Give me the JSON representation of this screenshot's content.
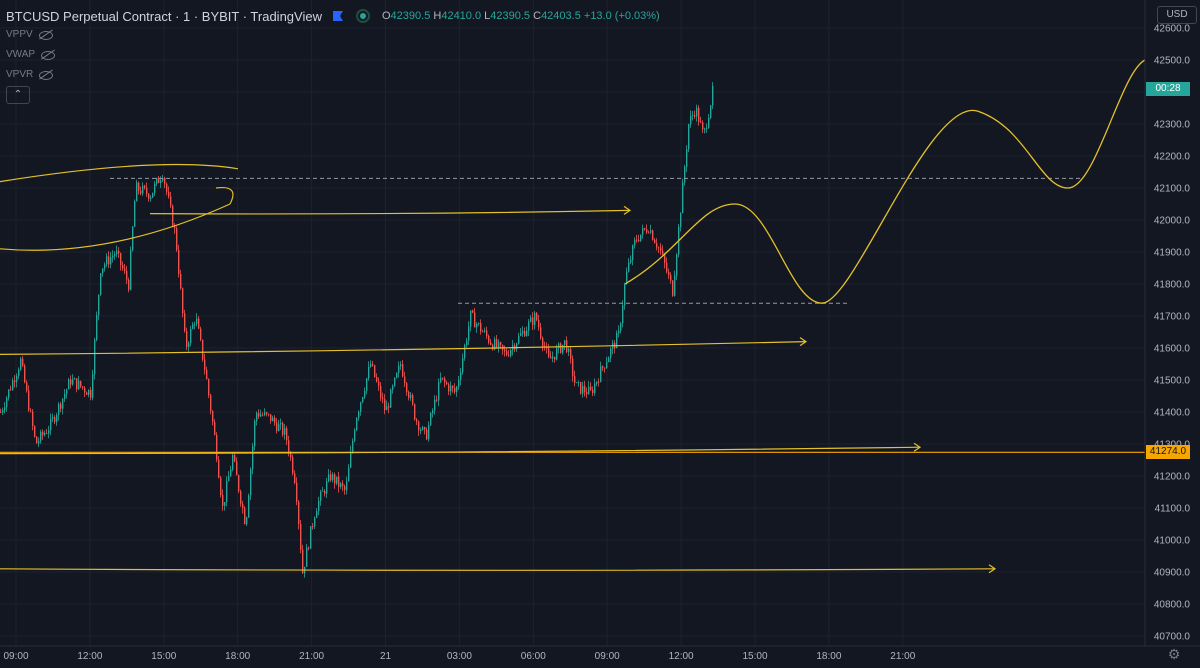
{
  "header": {
    "symbol": "BTCUSD Perpetual Contract · 1 · BYBIT · TradingView",
    "open_key": "O",
    "open": "42390.5",
    "high_key": "H",
    "high": "42410.0",
    "low_key": "L",
    "low": "42390.5",
    "close_key": "C",
    "close": "42403.5",
    "change": "+13.0 (+0.03%)"
  },
  "indicators": [
    {
      "label": "VPPV",
      "icon": "eye-off-icon"
    },
    {
      "label": "VWAP",
      "icon": "eye-off-icon"
    },
    {
      "label": "VPVR",
      "icon": "eye-off-icon"
    }
  ],
  "collapse_symbol": "⌃",
  "currency": "USD",
  "timer_label": "00:28",
  "level_label": "41274.0",
  "settings_icon": "gear-icon",
  "settings_glyph": "⚙",
  "colors": {
    "background": "#131722",
    "up": "#26a69a",
    "down": "#ef5350",
    "drawing": "#e3c02b",
    "level": "#f7a600",
    "grid": "#1e222d",
    "text": "#d1d4dc"
  },
  "chart_data": {
    "type": "candlestick",
    "yaxis_ticks": [
      "42600.0",
      "42500.0",
      "42400.0",
      "42300.0",
      "42200.0",
      "42100.0",
      "42000.0",
      "41900.0",
      "41800.0",
      "41700.0",
      "41600.0",
      "41500.0",
      "41400.0",
      "41300.0",
      "41200.0",
      "41100.0",
      "41000.0",
      "40900.0",
      "40800.0",
      "40700.0"
    ],
    "xaxis_ticks": [
      "09:00",
      "12:00",
      "15:00",
      "18:00",
      "21:00",
      "21",
      "03:00",
      "06:00",
      "09:00",
      "12:00",
      "15:00",
      "18:00",
      "21:00"
    ],
    "ylim": [
      40680,
      42660
    ],
    "price_path": [
      [
        0,
        41400
      ],
      [
        20,
        41560
      ],
      [
        35,
        41300
      ],
      [
        50,
        41360
      ],
      [
        70,
        41500
      ],
      [
        90,
        41460
      ],
      [
        100,
        41850
      ],
      [
        115,
        41900
      ],
      [
        128,
        41800
      ],
      [
        135,
        42100
      ],
      [
        150,
        42080
      ],
      [
        162,
        42150
      ],
      [
        175,
        41950
      ],
      [
        185,
        41600
      ],
      [
        195,
        41700
      ],
      [
        205,
        41520
      ],
      [
        215,
        41300
      ],
      [
        222,
        41100
      ],
      [
        232,
        41260
      ],
      [
        245,
        41050
      ],
      [
        255,
        41400
      ],
      [
        270,
        41380
      ],
      [
        285,
        41330
      ],
      [
        295,
        41180
      ],
      [
        302,
        40900
      ],
      [
        315,
        41100
      ],
      [
        330,
        41200
      ],
      [
        345,
        41150
      ],
      [
        355,
        41380
      ],
      [
        370,
        41550
      ],
      [
        385,
        41400
      ],
      [
        400,
        41550
      ],
      [
        415,
        41380
      ],
      [
        425,
        41320
      ],
      [
        440,
        41500
      ],
      [
        455,
        41460
      ],
      [
        470,
        41700
      ],
      [
        490,
        41620
      ],
      [
        505,
        41580
      ],
      [
        520,
        41640
      ],
      [
        535,
        41700
      ],
      [
        548,
        41560
      ],
      [
        565,
        41620
      ],
      [
        575,
        41480
      ],
      [
        590,
        41460
      ],
      [
        605,
        41560
      ],
      [
        618,
        41640
      ],
      [
        625,
        41820
      ],
      [
        635,
        41940
      ],
      [
        648,
        41980
      ],
      [
        660,
        41900
      ],
      [
        672,
        41780
      ],
      [
        682,
        42100
      ],
      [
        688,
        42300
      ],
      [
        695,
        42350
      ],
      [
        703,
        42260
      ],
      [
        712,
        42400
      ]
    ],
    "horizontal_levels": [
      {
        "price": 42130,
        "style": "dashed"
      },
      {
        "price": 41740,
        "style": "dashed"
      },
      {
        "price": 41274,
        "style": "solid"
      }
    ],
    "drawn_arrows": [
      {
        "from_price": 42020,
        "to_price": 42030
      },
      {
        "from_price": 41580,
        "to_price": 41620
      },
      {
        "from_price": 41270,
        "to_price": 41290
      },
      {
        "from_price": 40910,
        "to_price": 40910
      }
    ],
    "projection_path_prices": [
      41800,
      42050,
      41740,
      42340,
      42100,
      42500
    ]
  }
}
